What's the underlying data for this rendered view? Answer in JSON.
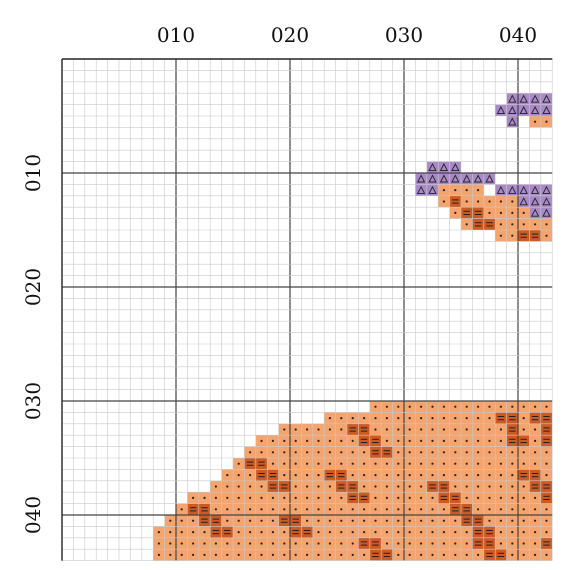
{
  "pattern": {
    "column_labels": [
      "010",
      "020",
      "030",
      "040"
    ],
    "row_labels": [
      "010",
      "020",
      "030",
      "040"
    ],
    "grid_colors": {
      "minor": "#c9c9c9",
      "major": "#444444",
      "border": "#333333"
    },
    "stitch_legend": [
      {
        "symbol": "dot",
        "color": "#f4a46c",
        "mark_color": "#222222"
      },
      {
        "symbol": "double-dash",
        "color": "#cc5a22",
        "mark_color": "#222222"
      },
      {
        "symbol": "triangle",
        "color": "#a989c8",
        "mark_color": "#222222"
      }
    ],
    "purple_runs": [
      [
        3,
        39,
        42
      ],
      [
        4,
        38,
        42
      ],
      [
        5,
        39,
        39
      ],
      [
        9,
        32,
        34
      ],
      [
        10,
        31,
        37
      ],
      [
        11,
        31,
        32
      ],
      [
        11,
        38,
        42
      ],
      [
        12,
        40,
        42
      ],
      [
        13,
        41,
        42
      ]
    ],
    "peach_runs": [
      [
        5,
        41,
        42
      ],
      [
        11,
        33,
        36
      ],
      [
        12,
        33,
        39
      ],
      [
        13,
        34,
        42
      ],
      [
        14,
        35,
        42
      ],
      [
        15,
        38,
        42
      ],
      [
        30,
        27,
        42
      ],
      [
        31,
        23,
        42
      ],
      [
        32,
        19,
        42
      ],
      [
        33,
        17,
        42
      ],
      [
        34,
        16,
        42
      ],
      [
        35,
        15,
        42
      ],
      [
        36,
        14,
        42
      ],
      [
        37,
        13,
        42
      ],
      [
        38,
        11,
        42
      ],
      [
        39,
        10,
        42
      ],
      [
        40,
        9,
        42
      ],
      [
        41,
        8,
        42
      ],
      [
        42,
        8,
        42
      ],
      [
        43,
        8,
        42
      ]
    ],
    "dark_runs": [
      [
        12,
        34,
        34
      ],
      [
        13,
        35,
        36
      ],
      [
        14,
        36,
        37
      ],
      [
        15,
        40,
        41
      ],
      [
        31,
        38,
        39
      ],
      [
        31,
        41,
        42
      ],
      [
        32,
        25,
        26
      ],
      [
        32,
        39,
        39
      ],
      [
        32,
        42,
        42
      ],
      [
        33,
        26,
        27
      ],
      [
        33,
        39,
        40
      ],
      [
        33,
        42,
        42
      ],
      [
        34,
        27,
        28
      ],
      [
        35,
        16,
        17
      ],
      [
        36,
        17,
        18
      ],
      [
        36,
        23,
        24
      ],
      [
        36,
        40,
        41
      ],
      [
        37,
        18,
        19
      ],
      [
        37,
        24,
        25
      ],
      [
        37,
        32,
        33
      ],
      [
        37,
        41,
        42
      ],
      [
        38,
        25,
        26
      ],
      [
        38,
        33,
        34
      ],
      [
        38,
        42,
        42
      ],
      [
        39,
        11,
        12
      ],
      [
        39,
        34,
        35
      ],
      [
        40,
        12,
        13
      ],
      [
        40,
        19,
        20
      ],
      [
        40,
        35,
        36
      ],
      [
        41,
        13,
        14
      ],
      [
        41,
        20,
        21
      ],
      [
        41,
        36,
        37
      ],
      [
        42,
        26,
        27
      ],
      [
        42,
        36,
        37
      ],
      [
        42,
        42,
        42
      ],
      [
        43,
        27,
        28
      ],
      [
        43,
        37,
        38
      ]
    ]
  }
}
